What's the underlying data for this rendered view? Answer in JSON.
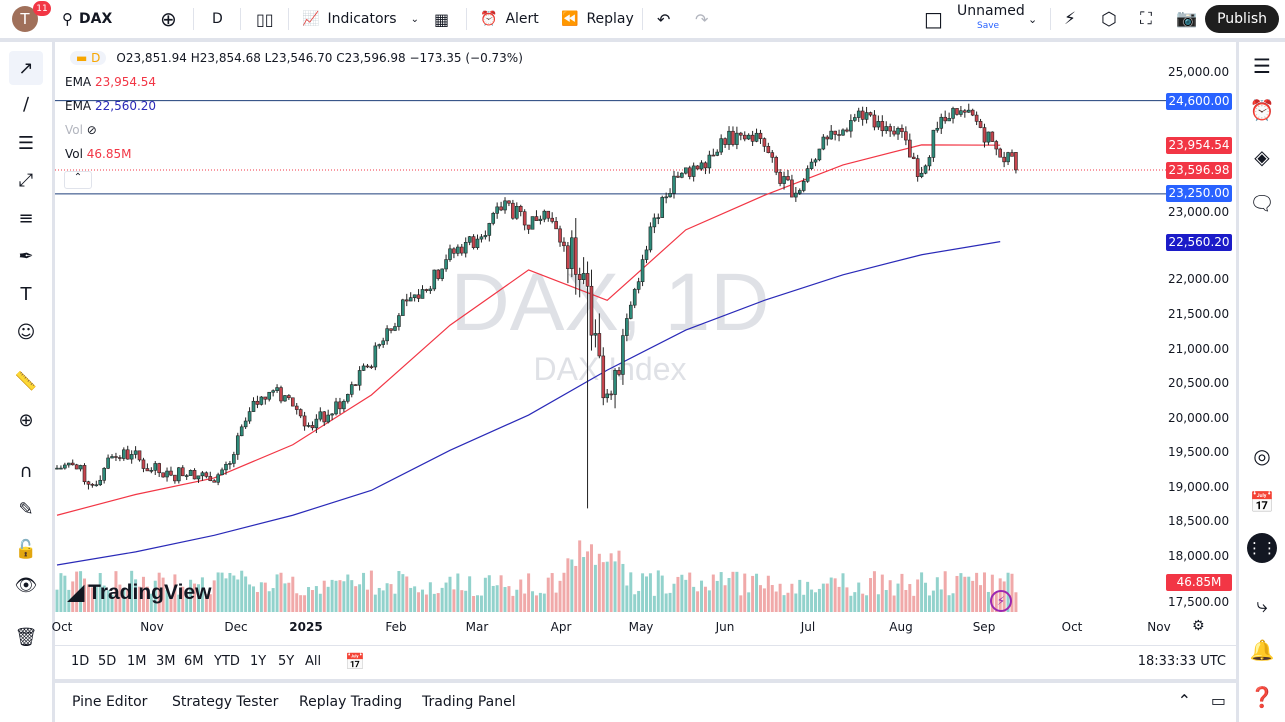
{
  "topbar": {
    "avatar_letter": "T",
    "notifications": "11",
    "symbol": "DAX",
    "interval": "D",
    "indicators": "Indicators",
    "alert": "Alert",
    "replay": "Replay",
    "layout_name": "Unnamed",
    "save": "Save",
    "publish": "Publish"
  },
  "legend": {
    "interval_badge": "D",
    "ohlc": "O23,851.94 H23,854.68 L23,546.70 C23,596.98 −173.35 (−0.73%)",
    "ema1_label": "EMA",
    "ema1_value": "23,954.54",
    "ema2_label": "EMA",
    "ema2_value": "22,560.20",
    "vol_hidden_label": "Vol",
    "vol_label": "Vol",
    "vol_value": "46.85M"
  },
  "watermark": {
    "title": "DAX, 1D",
    "subtitle": "DAX Index",
    "logo": "TradingView"
  },
  "price_axis": {
    "ticks": [
      "25,000.00",
      "23,000.00",
      "22,000.00",
      "21,500.00",
      "21,000.00",
      "20,500.00",
      "20,000.00",
      "19,500.00",
      "19,000.00",
      "18,500.00",
      "18,000.00",
      "17,500.00"
    ],
    "labels": {
      "resistance": "24,600.00",
      "ema1": "23,954.54",
      "last": "23,596.98",
      "support": "23,250.00",
      "ema2": "22,560.20",
      "volume": "46.85M"
    }
  },
  "time_axis": [
    "Oct",
    "Nov",
    "Dec",
    "2025",
    "Feb",
    "Mar",
    "Apr",
    "May",
    "Jun",
    "Jul",
    "Aug",
    "Sep",
    "Oct",
    "Nov"
  ],
  "range_buttons": [
    "1D",
    "5D",
    "1M",
    "3M",
    "6M",
    "YTD",
    "1Y",
    "5Y",
    "All"
  ],
  "clock": "18:33:33 UTC",
  "bottom_tabs": [
    "Pine Editor",
    "Strategy Tester",
    "Replay Trading",
    "Trading Panel"
  ],
  "colors": {
    "up": "#089981",
    "down": "#f23645",
    "ema_fast": "#f23645",
    "ema_slow": "#2a2ab8",
    "hline": "#1e3f7a",
    "label_blue": "#2962ff",
    "label_navy": "#1c1cc8"
  },
  "chart_data": {
    "type": "candlestick",
    "symbol": "DAX",
    "interval": "1D",
    "x_start": "2024-10-04",
    "x_end": "2025-09-05",
    "weekly_close": [
      19330,
      19040,
      19450,
      19480,
      19250,
      19180,
      19250,
      19100,
      19350,
      20100,
      20380,
      20300,
      19900,
      20050,
      20350,
      20750,
      21300,
      21700,
      21850,
      22300,
      22550,
      22650,
      23150,
      22800,
      23000,
      22500,
      22100,
      20300,
      21200,
      22300,
      23200,
      23550,
      23700,
      24050,
      24100,
      24050,
      23400,
      23300,
      23900,
      24100,
      24450,
      24300,
      24200,
      23500,
      24200,
      24400,
      24300,
      23900,
      23597
    ],
    "last_bar": {
      "open": 23851.94,
      "high": 23854.68,
      "low": 23546.7,
      "close": 23596.98
    },
    "ema_fast_every_4_weeks": [
      18600,
      18900,
      19140,
      19620,
      20340,
      21350,
      22150,
      21710,
      22730,
      23230,
      23670,
      23960,
      23955
    ],
    "ema_slow_every_4_weeks": [
      17880,
      18070,
      18310,
      18600,
      18960,
      19540,
      20050,
      20700,
      21280,
      21710,
      22080,
      22370,
      22560
    ],
    "horizontal_lines": [
      24600,
      23250
    ],
    "ylim": [
      17500,
      25200
    ]
  }
}
